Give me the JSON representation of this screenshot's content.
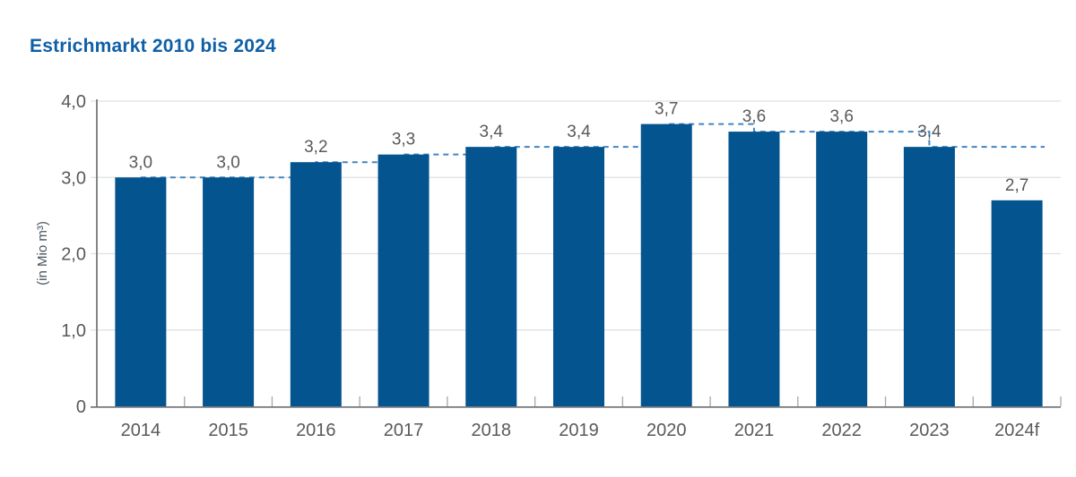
{
  "header": {
    "title": "Estrichmarkt 2010 bis 2024",
    "title_color": "#0e5fa6"
  },
  "chart_data": {
    "type": "bar",
    "title": "Estrichmarkt 2010 bis 2024",
    "categories": [
      "2014",
      "2015",
      "2016",
      "2017",
      "2018",
      "2019",
      "2020",
      "2021",
      "2022",
      "2023",
      "2024f"
    ],
    "values": [
      3.0,
      3.0,
      3.2,
      3.3,
      3.4,
      3.4,
      3.7,
      3.6,
      3.6,
      3.4,
      2.7
    ],
    "value_labels": [
      "3,0",
      "3,0",
      "3,2",
      "3,3",
      "3,4",
      "3,4",
      "3,7",
      "3,6",
      "3,6",
      "3,4",
      "2,7"
    ],
    "xlabel": "",
    "ylabel": "(in Mio m³)",
    "ylim": [
      0,
      4
    ],
    "y_ticks": [
      {
        "value": 4,
        "label": "4,0"
      },
      {
        "value": 3,
        "label": "3,0"
      },
      {
        "value": 2,
        "label": "2,0"
      },
      {
        "value": 1,
        "label": "1,0"
      },
      {
        "value": 0,
        "label": "0"
      }
    ],
    "grid": "horizontal",
    "legend": "none",
    "bar_color": "#04548f",
    "annotations": {
      "step_line": {
        "description": "Dashed stepped line tracing bar values from 2014 through 2023, then extended horizontally at 3,4 past the 2024f bar",
        "values": [
          3.0,
          3.0,
          3.2,
          3.3,
          3.4,
          3.4,
          3.7,
          3.6,
          3.6,
          3.4
        ],
        "extends_beyond_last": true,
        "style": "dashed",
        "color": "#4385c1"
      }
    },
    "colors": {
      "grid": "#dde0e3",
      "axis": "#75797e",
      "tick": "#a3a7ac",
      "label_text": "#595959",
      "ylabel_text": "#47525c"
    }
  }
}
